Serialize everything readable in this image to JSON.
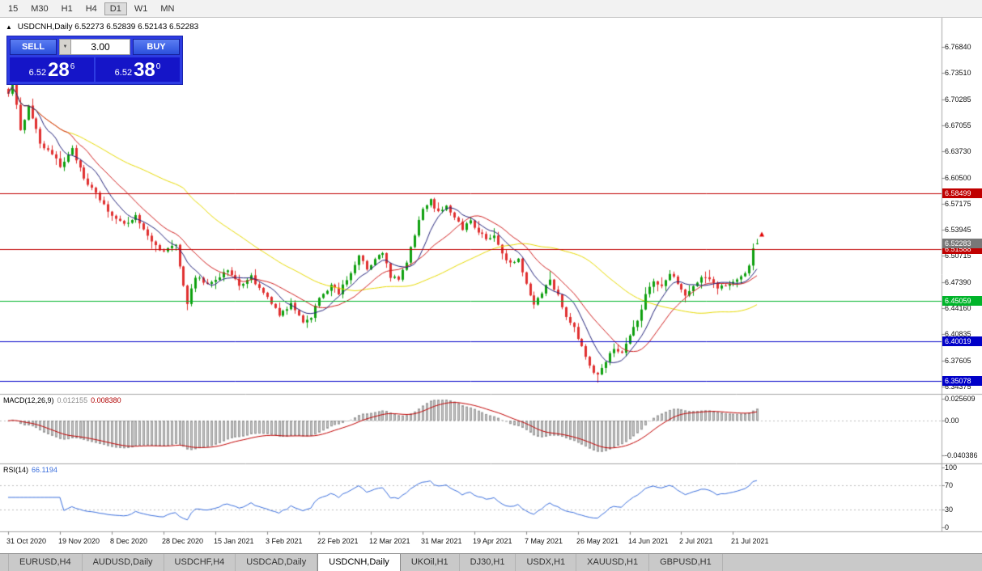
{
  "toolbar": {
    "items": [
      "15",
      "M30",
      "H1",
      "H4",
      "D1",
      "W1",
      "MN"
    ],
    "active": "D1"
  },
  "chart": {
    "collapse_arrow": "▲",
    "symbol": "USDCNH,Daily",
    "ohlc": "6.52273 6.52839 6.52143 6.52283"
  },
  "trade_panel": {
    "sell": "SELL",
    "buy": "BUY",
    "volume": "3.00",
    "dropdown_arrow": "▼",
    "bid_prefix": "6.52",
    "bid_big": "28",
    "bid_sup": "6",
    "ask_prefix": "6.52",
    "ask_big": "38",
    "ask_sup": "0"
  },
  "price_scale": {
    "ticks": [
      "6.76840",
      "6.73510",
      "6.70285",
      "6.67055",
      "6.63730",
      "6.60500",
      "6.57175",
      "6.53945",
      "6.50715",
      "6.47390",
      "6.44160",
      "6.40835",
      "6.37605",
      "6.34375"
    ]
  },
  "hlines": [
    {
      "price": 6.58499,
      "label": "6.58499",
      "color": "#C00000"
    },
    {
      "price": 6.51588,
      "label": "6.51588",
      "color": "#C00000"
    },
    {
      "price": 6.45059,
      "label": "6.45059",
      "color": "#00B42A"
    },
    {
      "price": 6.40019,
      "label": "6.40019",
      "color": "#0000C8"
    },
    {
      "price": 6.35078,
      "label": "6.35078",
      "color": "#0000C8"
    }
  ],
  "current_price_tag": {
    "price": 6.52283,
    "label": "6.52283",
    "bg": "#787878"
  },
  "macd": {
    "name": "MACD(12,26,9)",
    "value1": "0.012155",
    "value2": "0.008380",
    "scale": [
      "0.025609",
      "0.00",
      "-0.040386"
    ]
  },
  "rsi": {
    "name": "RSI(14)",
    "value": "66.1194",
    "levels": [
      "100",
      "70",
      "30",
      "0"
    ]
  },
  "dates": [
    {
      "label": "31 Oct 2020",
      "i": 0
    },
    {
      "label": "19 Nov 2020",
      "i": 13
    },
    {
      "label": "8 Dec 2020",
      "i": 26
    },
    {
      "label": "28 Dec 2020",
      "i": 39
    },
    {
      "label": "15 Jan 2021",
      "i": 52
    },
    {
      "label": "3 Feb 2021",
      "i": 65
    },
    {
      "label": "22 Feb 2021",
      "i": 78
    },
    {
      "label": "12 Mar 2021",
      "i": 91
    },
    {
      "label": "31 Mar 2021",
      "i": 104
    },
    {
      "label": "19 Apr 2021",
      "i": 117
    },
    {
      "label": "7 May 2021",
      "i": 130
    },
    {
      "label": "26 May 2021",
      "i": 143
    },
    {
      "label": "14 Jun 2021",
      "i": 156
    },
    {
      "label": "2 Jul 2021",
      "i": 169
    },
    {
      "label": "21 Jul 2021",
      "i": 182
    }
  ],
  "tabs": [
    {
      "label": "EURUSD,H4",
      "active": false
    },
    {
      "label": "AUDUSD,Daily",
      "active": false
    },
    {
      "label": "USDCHF,H4",
      "active": false
    },
    {
      "label": "USDCAD,Daily",
      "active": false
    },
    {
      "label": "USDCNH,Daily",
      "active": true
    },
    {
      "label": "UKOil,H1",
      "active": false
    },
    {
      "label": "DJ30,H1",
      "active": false
    },
    {
      "label": "USDX,H1",
      "active": false
    },
    {
      "label": "XAUUSD,H1",
      "active": false
    },
    {
      "label": "GBPUSD,H1",
      "active": false
    }
  ],
  "palette": {
    "bull": "#0FA00F",
    "bear": "#E03030",
    "ma_yellow": "#E6D900",
    "ma_red": "#D02020",
    "ma_blue": "#23237A",
    "hist_fill": "#C6C6C6",
    "hist_border": "#9B9B9B",
    "macd_signal": "#C00000",
    "rsi_line": "#3A6EDC",
    "level_dash": "#BEBEBE",
    "border": "#A6A6A6",
    "arrow": "#E00000"
  },
  "chart_data": {
    "type": "candlestick",
    "symbol": "USDCNH",
    "period": "Daily",
    "n": 189,
    "waypoints": [
      [
        0,
        6.712
      ],
      [
        1,
        6.726
      ],
      [
        3,
        6.662
      ],
      [
        5,
        6.697
      ],
      [
        8,
        6.648
      ],
      [
        11,
        6.635
      ],
      [
        13,
        6.618
      ],
      [
        16,
        6.642
      ],
      [
        19,
        6.602
      ],
      [
        23,
        6.578
      ],
      [
        26,
        6.557
      ],
      [
        29,
        6.545
      ],
      [
        32,
        6.558
      ],
      [
        35,
        6.53
      ],
      [
        39,
        6.512
      ],
      [
        42,
        6.52
      ],
      [
        44,
        6.472
      ],
      [
        45,
        6.448
      ],
      [
        47,
        6.482
      ],
      [
        50,
        6.472
      ],
      [
        52,
        6.477
      ],
      [
        55,
        6.49
      ],
      [
        58,
        6.47
      ],
      [
        61,
        6.482
      ],
      [
        63,
        6.465
      ],
      [
        65,
        6.455
      ],
      [
        68,
        6.432
      ],
      [
        71,
        6.447
      ],
      [
        74,
        6.422
      ],
      [
        76,
        6.432
      ],
      [
        78,
        6.456
      ],
      [
        81,
        6.47
      ],
      [
        83,
        6.46
      ],
      [
        86,
        6.487
      ],
      [
        88,
        6.507
      ],
      [
        90,
        6.49
      ],
      [
        92,
        6.502
      ],
      [
        94,
        6.512
      ],
      [
        96,
        6.48
      ],
      [
        98,
        6.478
      ],
      [
        100,
        6.498
      ],
      [
        102,
        6.535
      ],
      [
        104,
        6.565
      ],
      [
        106,
        6.576
      ],
      [
        108,
        6.561
      ],
      [
        110,
        6.571
      ],
      [
        112,
        6.556
      ],
      [
        114,
        6.541
      ],
      [
        116,
        6.552
      ],
      [
        118,
        6.537
      ],
      [
        120,
        6.528
      ],
      [
        122,
        6.532
      ],
      [
        124,
        6.51
      ],
      [
        126,
        6.497
      ],
      [
        128,
        6.503
      ],
      [
        130,
        6.47
      ],
      [
        132,
        6.447
      ],
      [
        134,
        6.462
      ],
      [
        136,
        6.477
      ],
      [
        138,
        6.457
      ],
      [
        140,
        6.432
      ],
      [
        142,
        6.417
      ],
      [
        143,
        6.402
      ],
      [
        145,
        6.382
      ],
      [
        147,
        6.362
      ],
      [
        148,
        6.358
      ],
      [
        150,
        6.377
      ],
      [
        152,
        6.392
      ],
      [
        154,
        6.386
      ],
      [
        156,
        6.407
      ],
      [
        158,
        6.427
      ],
      [
        160,
        6.457
      ],
      [
        162,
        6.477
      ],
      [
        164,
        6.47
      ],
      [
        166,
        6.487
      ],
      [
        168,
        6.472
      ],
      [
        170,
        6.457
      ],
      [
        172,
        6.468
      ],
      [
        174,
        6.482
      ],
      [
        176,
        6.477
      ],
      [
        178,
        6.466
      ],
      [
        180,
        6.471
      ],
      [
        182,
        6.476
      ],
      [
        184,
        6.482
      ],
      [
        186,
        6.493
      ],
      [
        187,
        6.517
      ],
      [
        188,
        6.52283
      ]
    ],
    "last_candle": {
      "o": 6.52273,
      "h": 6.52839,
      "l": 6.52143,
      "c": 6.52283
    },
    "ma_periods": {
      "fast_blue": 8,
      "mid_red": 16,
      "slow_yellow": 45
    },
    "macd_params": [
      12,
      26,
      9
    ],
    "rsi_period": 14
  }
}
